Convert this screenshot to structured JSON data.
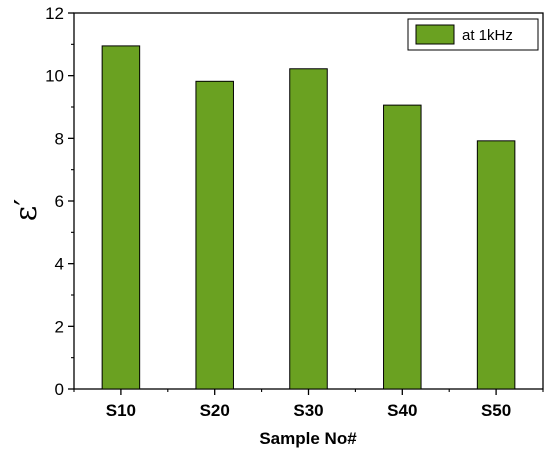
{
  "chart_data": {
    "type": "bar",
    "categories": [
      "S10",
      "S20",
      "S30",
      "S40",
      "S50"
    ],
    "series": [
      {
        "name": "at 1kHz",
        "values": [
          10.95,
          9.82,
          10.22,
          9.06,
          7.92
        ],
        "color": "#6aa121"
      }
    ],
    "xlabel": "Sample No#",
    "ylabel": "ε′",
    "ylim": [
      0,
      12
    ],
    "yticks": [
      "0",
      "2",
      "4",
      "6",
      "8",
      "10",
      "12"
    ],
    "grid": false,
    "legend_position": "top-right"
  }
}
